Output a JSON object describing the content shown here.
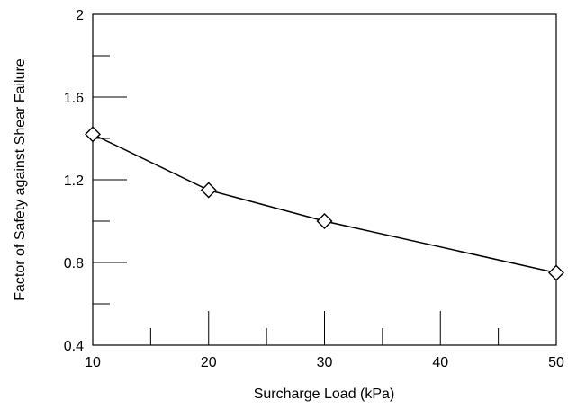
{
  "chart_data": {
    "type": "line",
    "title": "",
    "xlabel": "Surcharge Load (kPa)",
    "ylabel": "Factor of Safety against Shear Failure",
    "xlim": [
      10,
      50
    ],
    "ylim": [
      0.4,
      2
    ],
    "xticks": [
      {
        "value": 10,
        "label": "10"
      },
      {
        "value": 20,
        "label": "20"
      },
      {
        "value": 30,
        "label": "30"
      },
      {
        "value": 40,
        "label": "40"
      },
      {
        "value": 50,
        "label": "50"
      }
    ],
    "yticks": [
      {
        "value": 0.4,
        "label": "0.4"
      },
      {
        "value": 0.8,
        "label": "0.8"
      },
      {
        "value": 1.2,
        "label": "1.2"
      },
      {
        "value": 1.6,
        "label": "1.6"
      },
      {
        "value": 2.0,
        "label": "2"
      }
    ],
    "x_minor_ticks": [
      15,
      25,
      35,
      45
    ],
    "y_minor_ticks": [
      0.6,
      1.0,
      1.4,
      1.8
    ],
    "grid": false,
    "legend": "none",
    "marker": "diamond",
    "line_color": "#000000",
    "series": [
      {
        "x": [
          10,
          20,
          30,
          50
        ],
        "values": [
          1.42,
          1.15,
          1.0,
          0.75
        ]
      }
    ]
  }
}
